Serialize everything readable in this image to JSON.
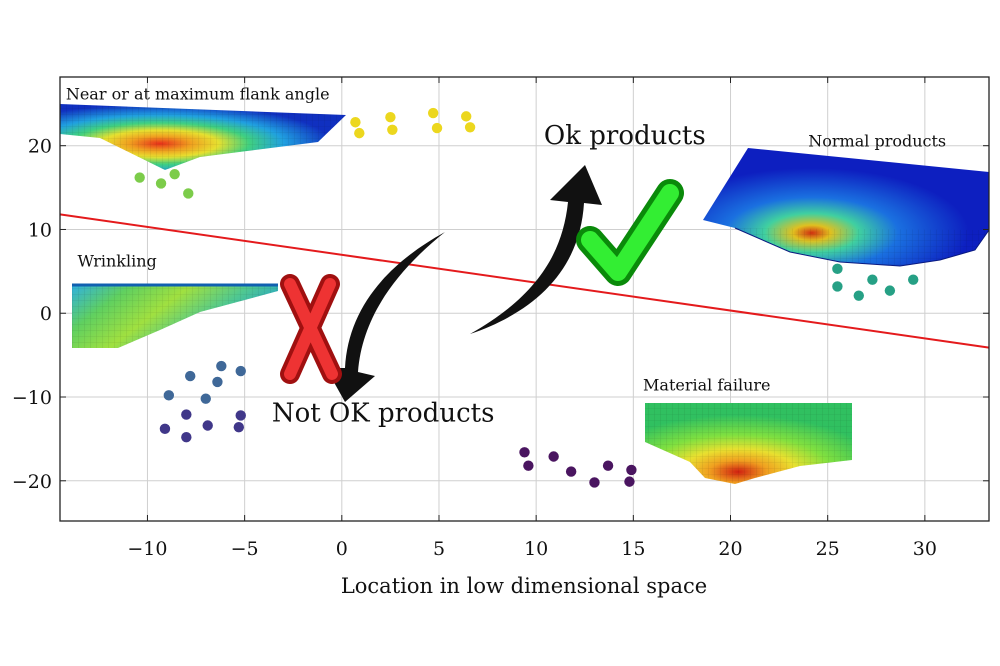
{
  "chart_data": {
    "type": "scatter",
    "title": "",
    "xlabel": "Location in low dimensional space",
    "ylabel": "",
    "xlim": [
      -14.5,
      33.3
    ],
    "ylim": [
      -24.8,
      28.2
    ],
    "xticks": [
      -10,
      -5,
      0,
      5,
      10,
      15,
      20,
      25,
      30
    ],
    "yticks": [
      -20,
      -10,
      0,
      10,
      20
    ],
    "xtick_labels": [
      "−10",
      "−5",
      "0",
      "5",
      "10",
      "15",
      "20",
      "25",
      "30"
    ],
    "ytick_labels": [
      "−20",
      "−10",
      "0",
      "10",
      "20"
    ],
    "grid": true,
    "decision_boundary": {
      "x": [
        -14.5,
        33.3
      ],
      "y": [
        11.8,
        -4.1
      ],
      "color": "#e41a1c"
    },
    "clusters": [
      {
        "color": "#ecd71e",
        "points": [
          [
            0.7,
            22.8
          ],
          [
            0.9,
            21.5
          ],
          [
            2.5,
            23.4
          ],
          [
            2.6,
            21.9
          ],
          [
            4.7,
            23.9
          ],
          [
            4.9,
            22.1
          ],
          [
            6.4,
            23.5
          ],
          [
            6.6,
            22.2
          ]
        ]
      },
      {
        "color": "#7ccc4a",
        "points": [
          [
            -10.4,
            16.2
          ],
          [
            -9.3,
            15.5
          ],
          [
            -8.6,
            16.6
          ],
          [
            -7.9,
            14.3
          ]
        ]
      },
      {
        "color": "#26a085",
        "points": [
          [
            25.5,
            5.3
          ],
          [
            25.5,
            3.2
          ],
          [
            26.6,
            2.1
          ],
          [
            27.3,
            4.0
          ],
          [
            28.2,
            2.7
          ],
          [
            29.4,
            4.0
          ]
        ]
      },
      {
        "color": "#3f6898",
        "points": [
          [
            -7.8,
            -7.5
          ],
          [
            -6.2,
            -6.3
          ],
          [
            -6.4,
            -8.2
          ],
          [
            -5.2,
            -6.9
          ],
          [
            -8.9,
            -9.8
          ],
          [
            -7.0,
            -10.2
          ]
        ]
      },
      {
        "color": "#403789",
        "points": [
          [
            -8.0,
            -12.1
          ],
          [
            -5.2,
            -12.2
          ],
          [
            -9.1,
            -13.8
          ],
          [
            -6.9,
            -13.4
          ],
          [
            -5.3,
            -13.6
          ],
          [
            -8.0,
            -14.8
          ]
        ]
      },
      {
        "color": "#4a1560",
        "points": [
          [
            9.4,
            -16.6
          ],
          [
            9.6,
            -18.2
          ],
          [
            10.9,
            -17.1
          ],
          [
            11.8,
            -18.9
          ],
          [
            13.7,
            -18.2
          ],
          [
            14.9,
            -18.7
          ],
          [
            13.0,
            -20.2
          ],
          [
            14.8,
            -20.1
          ]
        ]
      }
    ],
    "annotations": [
      {
        "text": "Near or at maximum flank angle",
        "x": -14.2,
        "y": 25.5,
        "size": "small"
      },
      {
        "text": "Ok products",
        "x": 10.4,
        "y": 20.2,
        "size": "big"
      },
      {
        "text": "Normal products",
        "x": 24.0,
        "y": 19.9,
        "size": "small"
      },
      {
        "text": "Wrinkling",
        "x": -13.6,
        "y": 5.6,
        "size": "small"
      },
      {
        "text": "Not OK products",
        "x": -3.6,
        "y": -12.9,
        "size": "big"
      },
      {
        "text": "Material failure",
        "x": 15.5,
        "y": -9.2,
        "size": "small"
      }
    ],
    "markers": {
      "check_color": "#33ee33",
      "cross_color": "#ee3333",
      "arrow_color": "#111111"
    },
    "inset_icons": [
      "flank-angle-mesh-icon",
      "normal-product-mesh-icon",
      "wrinkling-mesh-icon",
      "material-failure-mesh-icon",
      "checkmark-icon",
      "cross-icon",
      "curved-arrow-icon"
    ]
  }
}
